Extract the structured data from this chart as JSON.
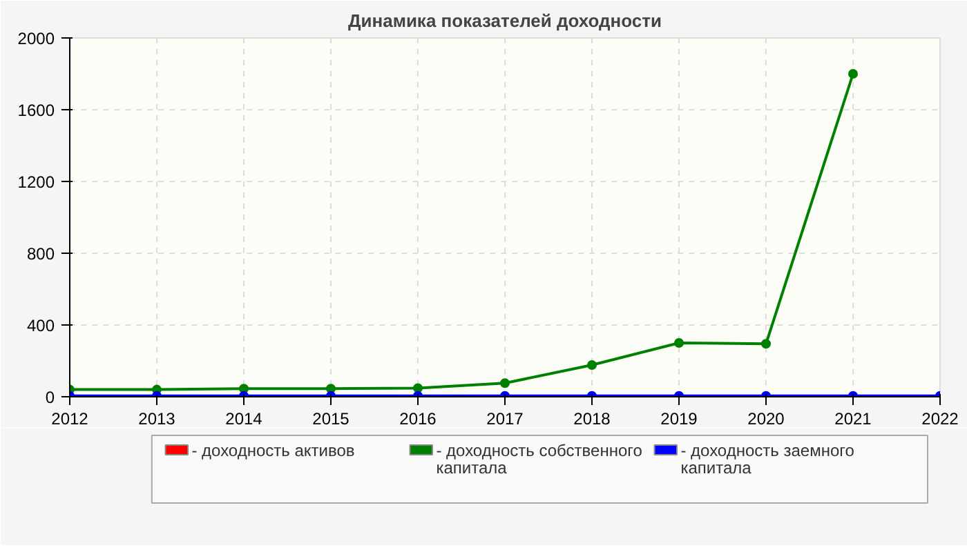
{
  "chart_data": {
    "type": "line",
    "title": "Динамика показателей доходности",
    "x": [
      2012,
      2013,
      2014,
      2015,
      2016,
      2017,
      2018,
      2019,
      2020,
      2021,
      2022
    ],
    "series": [
      {
        "name": "- доходность активов",
        "color": "#ff0000",
        "values": [
          null,
          null,
          null,
          null,
          null,
          null,
          null,
          null,
          null,
          null,
          null
        ]
      },
      {
        "name": "- доходность собственного капитала",
        "color": "#008000",
        "values": [
          40,
          40,
          45,
          45,
          48,
          76,
          177,
          300,
          295,
          1800,
          null
        ]
      },
      {
        "name": "- доходность заемного капитала",
        "color": "#0000ff",
        "values": [
          5,
          5,
          5,
          5,
          5,
          5,
          5,
          5,
          5,
          5,
          5
        ]
      }
    ],
    "xlim": [
      2012,
      2022
    ],
    "xticks": [
      2012,
      2013,
      2014,
      2015,
      2016,
      2017,
      2018,
      2019,
      2020,
      2021,
      2022
    ],
    "ylim": [
      0,
      2000
    ],
    "yticks": [
      0,
      400,
      800,
      1200,
      1600,
      2000
    ],
    "grid": true,
    "legend": "bottom",
    "marker": "circle",
    "line_style": "solid"
  }
}
